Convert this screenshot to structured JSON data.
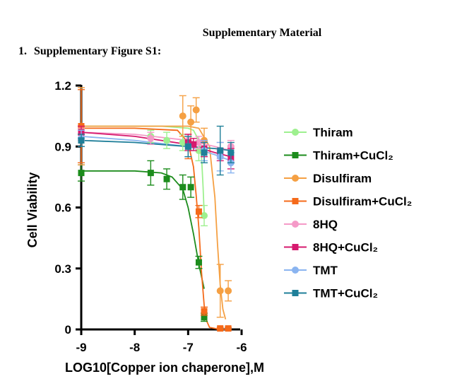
{
  "document": {
    "header": "Supplementary Material",
    "section_number": "1.",
    "section_title": "Supplementary Figure S1:"
  },
  "chart_data": {
    "type": "scatter",
    "xlabel": "LOG10[Copper ion chaperone],M",
    "ylabel": "Cell Viability",
    "xlim": [
      -9,
      -6
    ],
    "ylim": [
      0,
      1.2
    ],
    "x_ticks": [
      -9,
      -8,
      -7,
      -6
    ],
    "x_tick_labels": [
      "-9",
      "-8",
      "-7",
      "-6"
    ],
    "y_ticks": [
      0,
      0.3,
      0.6,
      0.9,
      1.2
    ],
    "y_tick_labels": [
      "0",
      "0.3",
      "0.6",
      "0.9",
      "1.2"
    ],
    "series": [
      {
        "name": "Thiram",
        "color": "#9ef08f",
        "marker": "circle",
        "x": [
          -9.0,
          -7.7,
          -7.4,
          -7.1,
          -6.95,
          -6.8,
          -6.7
        ],
        "y": [
          0.96,
          0.95,
          0.93,
          0.92,
          0.91,
          0.88,
          0.56
        ],
        "err": [
          0.03,
          0.03,
          0.04,
          0.04,
          0.03,
          0.05,
          0.05
        ],
        "fit_x": [
          -9.0,
          -8.5,
          -8.0,
          -7.5,
          -7.0,
          -6.9,
          -6.8,
          -6.75,
          -6.72,
          -6.7
        ],
        "fit_y": [
          1.0,
          1.0,
          1.0,
          1.0,
          0.99,
          0.98,
          0.93,
          0.85,
          0.7,
          0.57
        ]
      },
      {
        "name": "Thiram+CuCl₂",
        "color": "#1c8c1c",
        "marker": "square",
        "x": [
          -9.0,
          -7.7,
          -7.4,
          -7.1,
          -6.95,
          -6.8,
          -6.7
        ],
        "y": [
          0.77,
          0.77,
          0.74,
          0.7,
          0.7,
          0.33,
          0.06
        ],
        "err": [
          0.04,
          0.06,
          0.05,
          0.06,
          0.05,
          0.03,
          0.02
        ],
        "fit_x": [
          -9.0,
          -8.5,
          -8.0,
          -7.5,
          -7.3,
          -7.1,
          -7.0,
          -6.9,
          -6.8,
          -6.7
        ],
        "fit_y": [
          0.78,
          0.78,
          0.78,
          0.77,
          0.75,
          0.69,
          0.6,
          0.47,
          0.32,
          0.2
        ]
      },
      {
        "name": "Disulfiram",
        "color": "#f5a043",
        "marker": "circle",
        "x": [
          -9.0,
          -7.1,
          -6.95,
          -6.85,
          -6.7,
          -6.4,
          -6.25
        ],
        "y": [
          1.0,
          1.05,
          1.02,
          1.08,
          0.93,
          0.19,
          0.19
        ],
        "err": [
          0.19,
          0.1,
          0.08,
          0.06,
          0.06,
          0.13,
          0.05
        ],
        "fit_x": [
          -9.0,
          -8.0,
          -7.0,
          -6.8,
          -6.6,
          -6.5,
          -6.45,
          -6.4,
          -6.35,
          -6.3
        ],
        "fit_y": [
          1.0,
          1.0,
          1.0,
          0.99,
          0.9,
          0.65,
          0.42,
          0.22,
          0.1,
          0.05
        ]
      },
      {
        "name": "Disulfiram+CuCl₂",
        "color": "#f56a1a",
        "marker": "square",
        "x": [
          -9.0,
          -7.0,
          -6.8,
          -6.7,
          -6.4,
          -6.25
        ],
        "y": [
          1.0,
          0.9,
          0.58,
          0.09,
          0.005,
          0.005
        ],
        "err": [
          0.18,
          0.06,
          0.03,
          0.02,
          0.005,
          0.005
        ],
        "fit_x": [
          -9.0,
          -8.0,
          -7.2,
          -7.0,
          -6.9,
          -6.85,
          -6.8,
          -6.75,
          -6.7,
          -6.65,
          -6.6,
          -6.4,
          -6.2
        ],
        "fit_y": [
          0.99,
          0.99,
          0.98,
          0.92,
          0.8,
          0.66,
          0.5,
          0.28,
          0.12,
          0.04,
          0.01,
          0.0,
          0.0
        ]
      },
      {
        "name": "8HQ",
        "color": "#f59ac8",
        "marker": "circle",
        "x": [
          -9.0,
          -7.7,
          -7.0,
          -6.8,
          -6.4,
          -6.2
        ],
        "y": [
          0.96,
          0.94,
          0.93,
          0.92,
          0.88,
          0.9
        ],
        "err": [
          0.03,
          0.03,
          0.03,
          0.03,
          0.04,
          0.03
        ],
        "fit_x": [
          -9.0,
          -8.0,
          -7.0,
          -6.5,
          -6.2
        ],
        "fit_y": [
          0.97,
          0.96,
          0.93,
          0.9,
          0.88
        ]
      },
      {
        "name": "8HQ+CuCl₂",
        "color": "#d6196e",
        "marker": "square",
        "x": [
          -9.0,
          -7.0,
          -6.9,
          -6.7,
          -6.4,
          -6.2
        ],
        "y": [
          0.97,
          0.92,
          0.91,
          0.89,
          0.86,
          0.84
        ],
        "err": [
          0.03,
          0.04,
          0.03,
          0.04,
          0.03,
          0.05
        ],
        "fit_x": [
          -9.0,
          -8.0,
          -7.0,
          -6.5,
          -6.2
        ],
        "fit_y": [
          0.97,
          0.95,
          0.91,
          0.87,
          0.85
        ]
      },
      {
        "name": "TMT",
        "color": "#8ab4f0",
        "marker": "circle",
        "x": [
          -9.0,
          -7.0,
          -6.7,
          -6.4,
          -6.2
        ],
        "y": [
          0.94,
          0.9,
          0.88,
          0.85,
          0.82
        ],
        "err": [
          0.04,
          0.05,
          0.05,
          0.07,
          0.05
        ],
        "fit_x": [
          -9.0,
          -8.0,
          -7.0,
          -6.5,
          -6.2
        ],
        "fit_y": [
          0.95,
          0.93,
          0.9,
          0.86,
          0.83
        ]
      },
      {
        "name": "TMT+CuCl₂",
        "color": "#1f7f99",
        "marker": "square",
        "x": [
          -9.0,
          -7.0,
          -6.7,
          -6.4,
          -6.2
        ],
        "y": [
          0.93,
          0.9,
          0.87,
          0.88,
          0.87
        ],
        "err": [
          0.03,
          0.05,
          0.05,
          0.12,
          0.05
        ],
        "fit_x": [
          -9.0,
          -8.0,
          -7.0,
          -6.5,
          -6.2
        ],
        "fit_y": [
          0.93,
          0.92,
          0.9,
          0.89,
          0.88
        ]
      }
    ]
  }
}
